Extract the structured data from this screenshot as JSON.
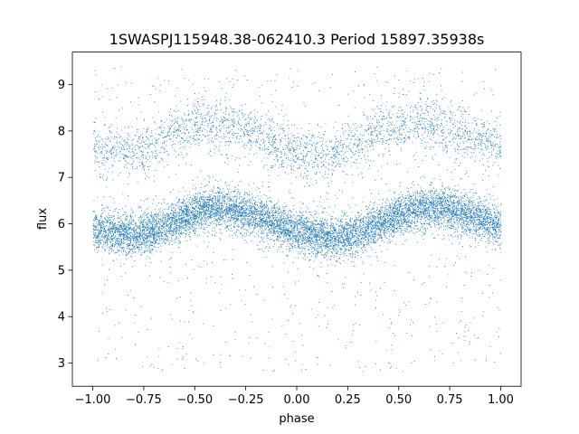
{
  "chart_data": {
    "type": "scatter",
    "title": "1SWASPJ115948.38-062410.3 Period 15897.35938s",
    "xlabel": "phase",
    "ylabel": "flux",
    "xlim": [
      -1.1,
      1.1
    ],
    "ylim": [
      2.5,
      9.7
    ],
    "x_ticks": [
      -1.0,
      -0.75,
      -0.5,
      -0.25,
      0.0,
      0.25,
      0.5,
      0.75,
      1.0
    ],
    "x_tick_labels": [
      "−1.00",
      "−0.75",
      "−0.50",
      "−0.25",
      "0.00",
      "0.25",
      "0.50",
      "0.75",
      "1.00"
    ],
    "y_ticks": [
      3,
      4,
      5,
      6,
      7,
      8,
      9
    ],
    "y_tick_labels": [
      "3",
      "4",
      "5",
      "6",
      "7",
      "8",
      "9"
    ],
    "grid": false,
    "marker_color": "#1f77b4",
    "series": [
      {
        "phase": [
          -1.0,
          -0.9,
          -0.8,
          -0.7,
          -0.6,
          -0.5,
          -0.4,
          -0.3,
          -0.2,
          -0.1,
          0.0,
          0.1,
          0.2,
          0.3,
          0.4,
          0.5,
          0.6,
          0.7,
          0.8,
          0.9,
          1.0
        ],
        "flux_main_band": [
          5.9,
          5.8,
          5.75,
          5.85,
          6.05,
          6.25,
          6.35,
          6.3,
          6.2,
          6.0,
          5.85,
          5.75,
          5.7,
          5.8,
          6.0,
          6.2,
          6.3,
          6.35,
          6.25,
          6.1,
          5.95
        ],
        "flux_upper_band": [
          7.65,
          7.6,
          7.55,
          7.75,
          8.0,
          8.1,
          8.15,
          8.1,
          7.95,
          7.7,
          7.55,
          7.5,
          7.55,
          7.75,
          8.0,
          8.15,
          8.2,
          8.1,
          7.95,
          7.8,
          7.7
        ],
        "flux_outlier_range": [
          2.8,
          9.4
        ]
      }
    ]
  }
}
